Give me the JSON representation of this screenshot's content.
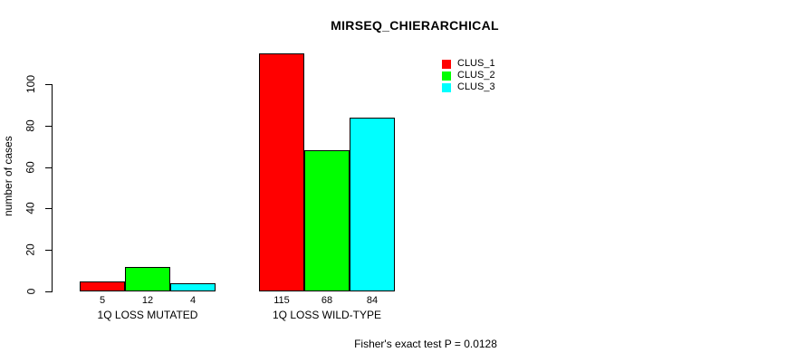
{
  "chart_data": {
    "type": "bar",
    "title": "MIRSEQ_CHIERARCHICAL",
    "ylabel": "number of cases",
    "xlabel": "",
    "categories": [
      "1Q LOSS MUTATED",
      "1Q LOSS WILD-TYPE"
    ],
    "series": [
      {
        "name": "CLUS_1",
        "color": "#ff0000",
        "values": [
          5,
          115
        ]
      },
      {
        "name": "CLUS_2",
        "color": "#00ff00",
        "values": [
          12,
          68
        ]
      },
      {
        "name": "CLUS_3",
        "color": "#00ffff",
        "values": [
          4,
          84
        ]
      }
    ],
    "bar_value_labels": [
      [
        "5",
        "12",
        "4"
      ],
      [
        "115",
        "68",
        "84"
      ]
    ],
    "yticks": [
      0,
      20,
      40,
      60,
      80,
      100
    ],
    "ylim": [
      0,
      115
    ],
    "grid": false,
    "legend_position": "top-right",
    "bar_border_color": "#000000",
    "background_color": "#ffffff",
    "annotation": "Fisher's exact test P = 0.0128"
  }
}
